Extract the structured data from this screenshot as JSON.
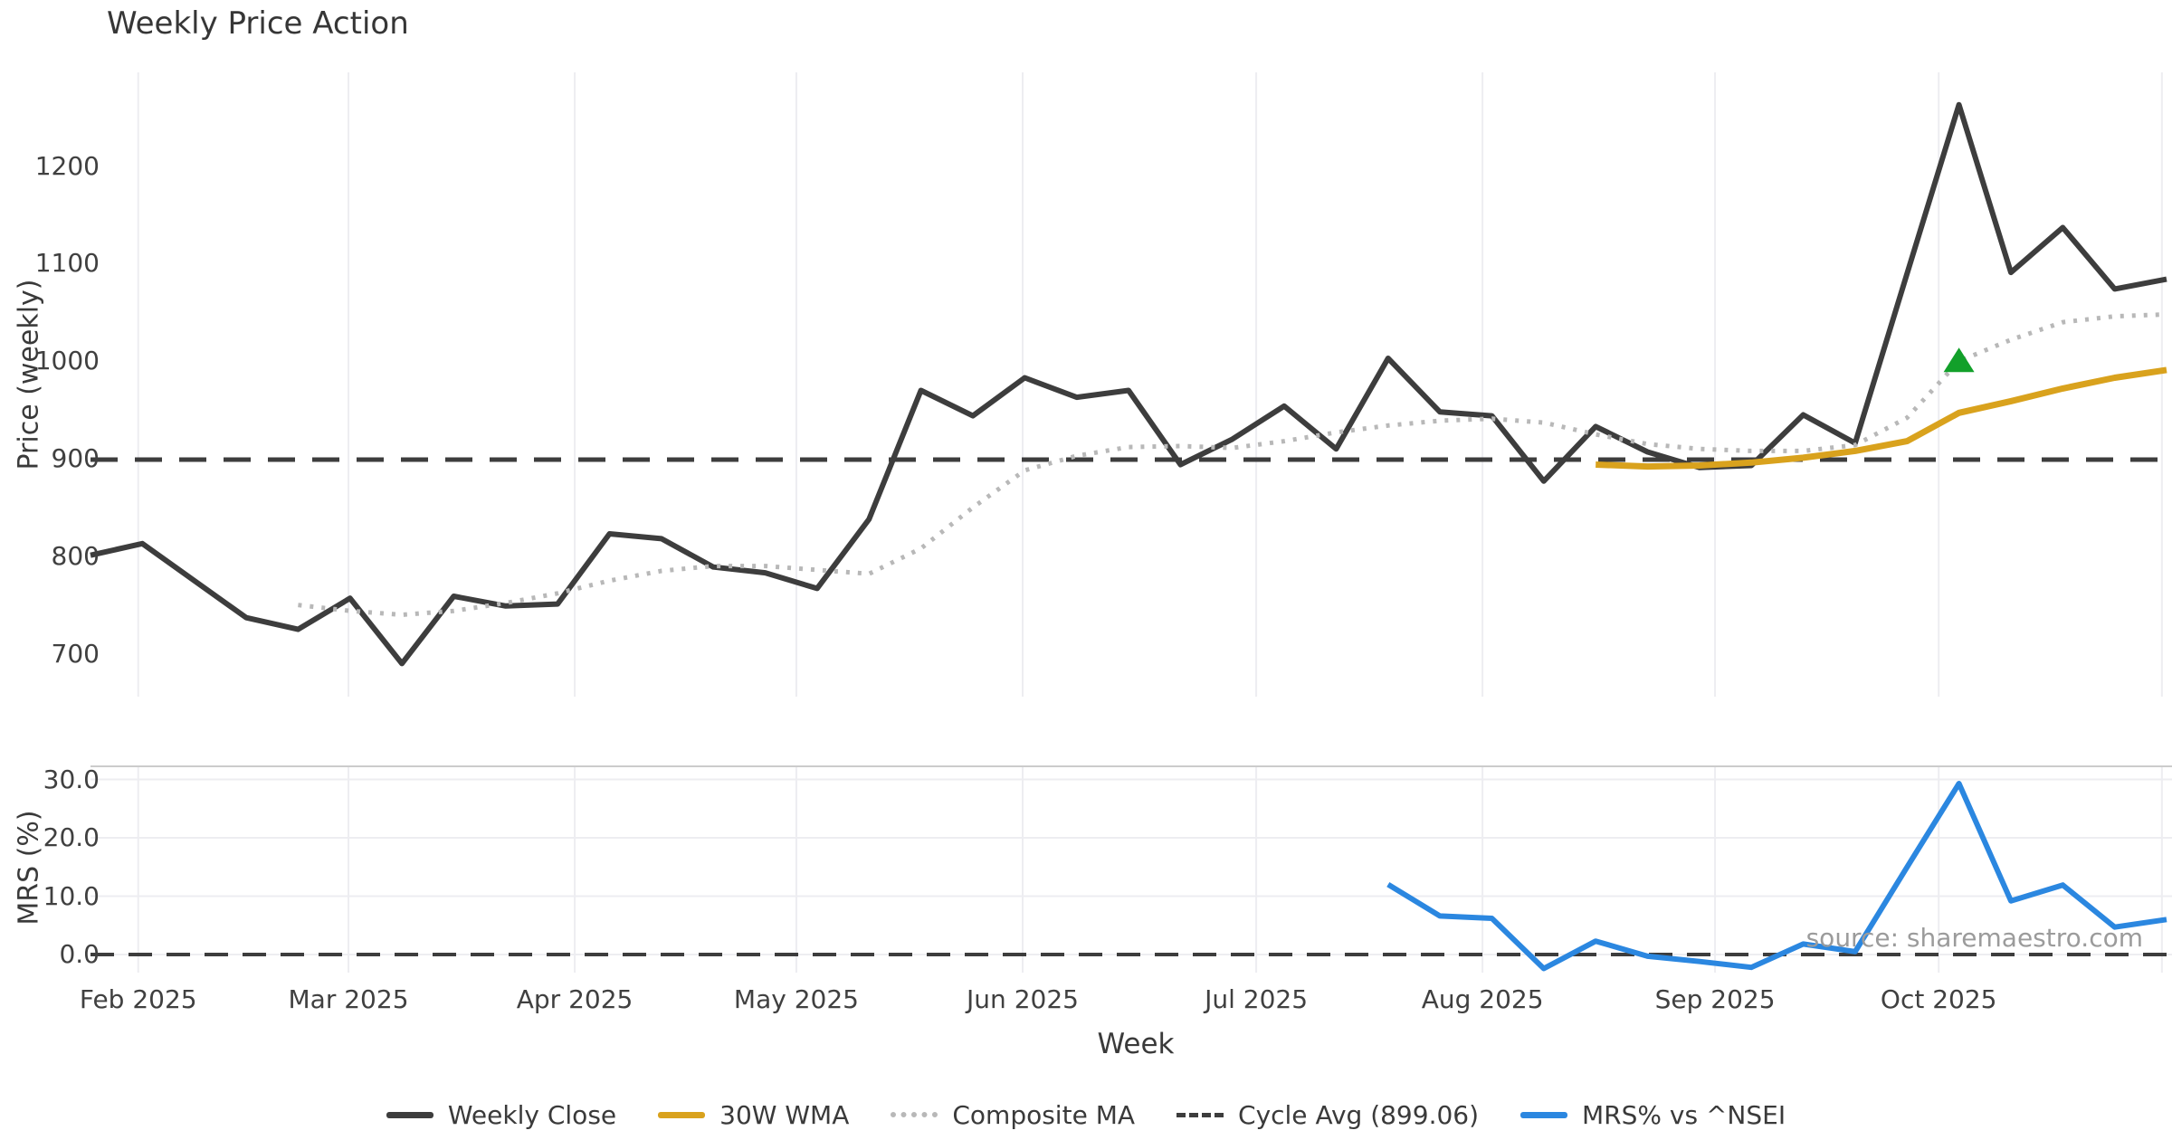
{
  "title": "Weekly Price Action",
  "source_watermark": "source: sharemaestro.com",
  "axes": {
    "x_label": "Week",
    "price_axis_label": "Price (weekly)",
    "mrs_axis_label": "MRS (%)",
    "price_ticks": [
      {
        "label": "1200",
        "value": 1200
      },
      {
        "label": "1100",
        "value": 1100
      },
      {
        "label": "1000",
        "value": 1000
      },
      {
        "label": "900",
        "value": 900
      },
      {
        "label": "800",
        "value": 800
      },
      {
        "label": "700",
        "value": 700
      }
    ],
    "mrs_ticks": [
      {
        "label": "30.0",
        "value": 30
      },
      {
        "label": "20.0",
        "value": 20
      },
      {
        "label": "10.0",
        "value": 10
      },
      {
        "label": "0.0",
        "value": 0
      }
    ],
    "month_ticks": [
      {
        "label": "Feb 2025",
        "week": 0.92
      },
      {
        "label": "Mar 2025",
        "week": 4.97
      },
      {
        "label": "Apr 2025",
        "week": 9.33
      },
      {
        "label": "May 2025",
        "week": 13.6
      },
      {
        "label": "Jun 2025",
        "week": 17.96
      },
      {
        "label": "Jul 2025",
        "week": 22.46
      },
      {
        "label": "Aug 2025",
        "week": 26.82
      },
      {
        "label": "Sep 2025",
        "week": 31.3
      },
      {
        "label": "Oct 2025",
        "week": 35.61
      }
    ],
    "unlabeled_gridline_week": 39.91
  },
  "cycle_avg_value": 899.06,
  "legend": [
    {
      "label": "Weekly Close",
      "style": "solid",
      "color": "#3d3d3d"
    },
    {
      "label": "30W WMA",
      "style": "solid",
      "color": "#d9a21d"
    },
    {
      "label": "Composite MA",
      "style": "dotted",
      "color": "#b8b8b8"
    },
    {
      "label": "Cycle Avg (899.06)",
      "style": "dashed",
      "color": "#3d3d3d"
    },
    {
      "label": "MRS% vs ^NSEI",
      "style": "solid",
      "color": "#2b87e0"
    }
  ],
  "marker": {
    "shape": "triangle-up",
    "color": "#12a02a",
    "week": 36,
    "price": 1000
  },
  "chart_data": [
    {
      "type": "line",
      "panel": "price",
      "title": "Weekly Price Action",
      "ylabel": "Price (weekly)",
      "x_unit": "week_index",
      "ylim": [
        656,
        1313
      ],
      "grid": "vertical-months-only",
      "series": [
        {
          "name": "Weekly Close",
          "color": "#3d3d3d",
          "style": "solid",
          "width": 6,
          "values": [
            801,
            813,
            775,
            737,
            725,
            757,
            690,
            759,
            749,
            751,
            823,
            818,
            789,
            783,
            767,
            838,
            970,
            944,
            983,
            963,
            970,
            894,
            920,
            954,
            910,
            1003,
            948,
            944,
            877,
            933,
            907,
            891,
            893,
            945,
            916,
            1090,
            1263,
            1091,
            1137,
            1074,
            1084
          ]
        },
        {
          "name": "30W WMA",
          "color": "#d9a21d",
          "style": "solid",
          "width": 7,
          "values": [
            null,
            null,
            null,
            null,
            null,
            null,
            null,
            null,
            null,
            null,
            null,
            null,
            null,
            null,
            null,
            null,
            null,
            null,
            null,
            null,
            null,
            null,
            null,
            null,
            null,
            null,
            null,
            null,
            null,
            894,
            892,
            893,
            896,
            901,
            908,
            918,
            947,
            959,
            972,
            983,
            991
          ]
        },
        {
          "name": "Composite MA",
          "color": "#b8b8b8",
          "style": "dotted",
          "width": 5,
          "values": [
            null,
            null,
            null,
            null,
            750,
            744,
            740,
            744,
            752,
            762,
            775,
            785,
            790,
            790,
            786,
            782,
            808,
            850,
            888,
            903,
            912,
            913,
            911,
            918,
            927,
            934,
            939,
            941,
            937,
            925,
            915,
            910,
            908,
            908,
            914,
            942,
            1000,
            1022,
            1040,
            1046,
            1048
          ]
        },
        {
          "name": "Cycle Avg",
          "color": "#3d3d3d",
          "style": "dashed",
          "width": 5,
          "hline": 899.06
        }
      ]
    },
    {
      "type": "line",
      "panel": "mrs",
      "ylabel": "MRS (%)",
      "x_unit": "week_index",
      "ylim": [
        -3.5,
        32.2
      ],
      "grid": "horizontal-and-vertical",
      "series": [
        {
          "name": "MRS% vs ^NSEI",
          "color": "#2b87e0",
          "style": "solid",
          "width": 6,
          "values": [
            null,
            null,
            null,
            null,
            null,
            null,
            null,
            null,
            null,
            null,
            null,
            null,
            null,
            null,
            null,
            null,
            null,
            null,
            null,
            null,
            null,
            null,
            null,
            null,
            null,
            12.0,
            6.6,
            6.2,
            -2.4,
            2.3,
            -0.3,
            -1.2,
            -2.2,
            1.8,
            0.5,
            15.0,
            29.3,
            9.2,
            11.9,
            4.7,
            6.0
          ]
        }
      ],
      "zero_line": {
        "value": 0,
        "style": "dashed",
        "color": "#3d3d3d"
      }
    }
  ]
}
